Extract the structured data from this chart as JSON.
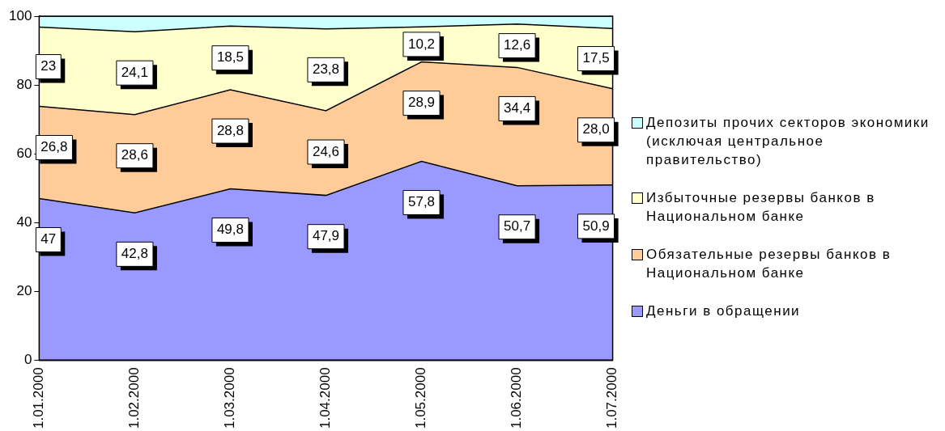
{
  "chart_data": {
    "type": "area",
    "stacked": true,
    "categories": [
      "1.01.2000",
      "1.02.2000",
      "1.03.2000",
      "1.04.2000",
      "1.05.2000",
      "1.06.2000",
      "1.07.2000"
    ],
    "series": [
      {
        "name": "Деньги в обращении",
        "color": "#9999ff",
        "values": [
          47,
          42.8,
          49.8,
          47.9,
          57.8,
          50.7,
          50.9
        ],
        "value_labels": [
          "47",
          "42,8",
          "49,8",
          "47,9",
          "57,8",
          "50,7",
          "50,9"
        ]
      },
      {
        "name": "Обязательные резервы банков в Национальном банке",
        "color": "#ffcc99",
        "values": [
          26.8,
          28.6,
          28.8,
          24.6,
          28.9,
          34.4,
          28.0
        ],
        "value_labels": [
          "26,8",
          "28,6",
          "28,8",
          "24,6",
          "28,9",
          "34,4",
          "28,0"
        ]
      },
      {
        "name": "Избыточные резервы банков в Национальном банке",
        "color": "#ffffcc",
        "values": [
          23,
          24.1,
          18.5,
          23.8,
          10.2,
          12.6,
          17.5
        ],
        "value_labels": [
          "23",
          "24,1",
          "18,5",
          "23,8",
          "10,2",
          "12,6",
          "17,5"
        ]
      },
      {
        "name": "Депозиты прочих секторов экономики (исключая центральное правительство)",
        "color": "#ccffff",
        "values": [
          3.2,
          4.5,
          2.9,
          3.7,
          3.1,
          2.3,
          3.6
        ]
      }
    ],
    "ylim": [
      0,
      100
    ],
    "yticks": [
      0,
      20,
      40,
      60,
      80,
      100
    ],
    "grid": false,
    "legend": "right",
    "marker": "none",
    "line_style": "solid"
  }
}
